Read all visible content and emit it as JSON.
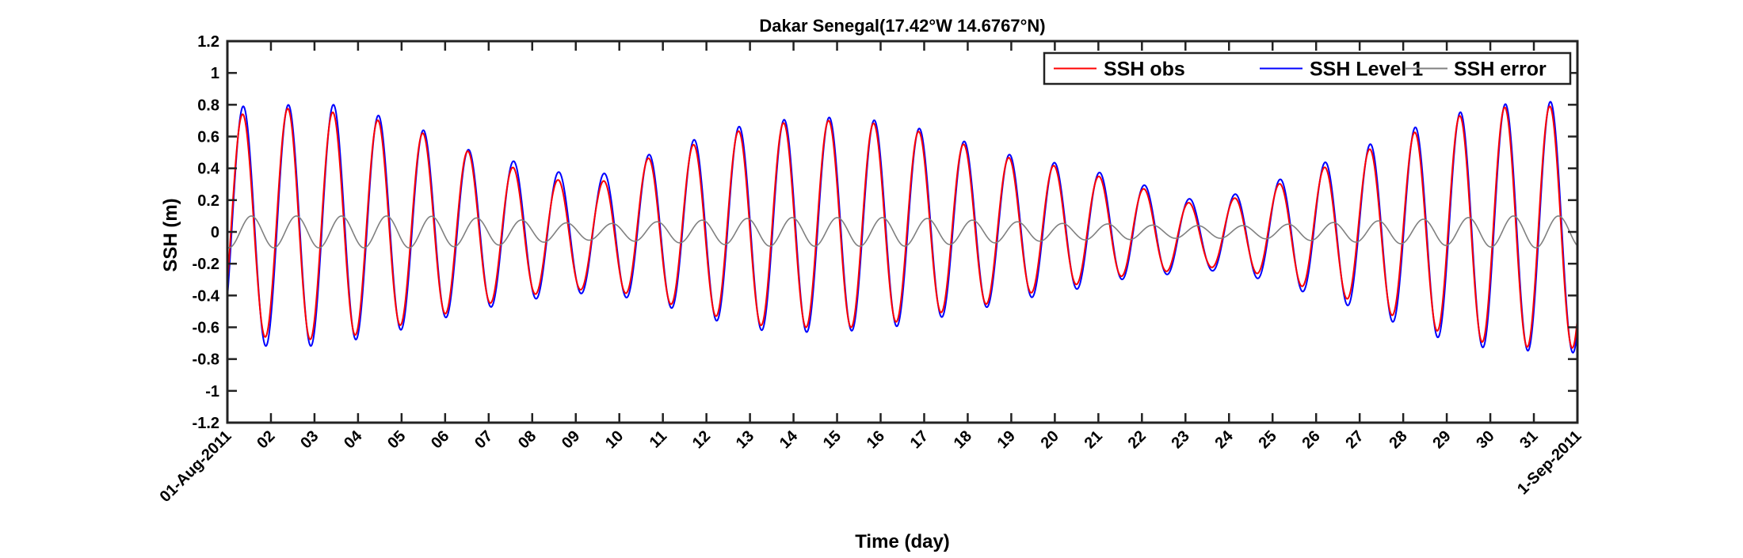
{
  "chart_data": {
    "type": "line",
    "title": "Dakar Senegal(17.42°W 14.6767°N)",
    "xlabel": "Time (day)",
    "ylabel": "SSH (m)",
    "x_range": [
      "2011-08-01",
      "2011-09-01"
    ],
    "ylim": [
      -1.2,
      1.2
    ],
    "y_ticks": [
      -1.2,
      -1,
      -0.8,
      -0.6,
      -0.4,
      -0.2,
      0,
      0.2,
      0.4,
      0.6,
      0.8,
      1,
      1.2
    ],
    "y_tick_labels": [
      "-1.2",
      "-1",
      "-0.8",
      "-0.6",
      "-0.4",
      "-0.2",
      "0",
      "0.2",
      "0.4",
      "0.6",
      "0.8",
      "1",
      "1.2"
    ],
    "x_tick_labels": [
      "01-Aug-2011",
      "02",
      "03",
      "04",
      "05",
      "06",
      "07",
      "08",
      "09",
      "10",
      "11",
      "12",
      "13",
      "14",
      "15",
      "16",
      "17",
      "18",
      "19",
      "20",
      "21",
      "22",
      "23",
      "24",
      "25",
      "26",
      "27",
      "28",
      "29",
      "30",
      "31",
      "1-Sep-2011"
    ],
    "grid": false,
    "legend_position": "top-right",
    "series": [
      {
        "name": "SSH obs",
        "color": "#ff0000",
        "daily_high": [
          0.74,
          0.78,
          0.75,
          0.7,
          0.62,
          0.51,
          0.41,
          0.33,
          0.3,
          0.45,
          0.53,
          0.62,
          0.68,
          0.7,
          0.7,
          0.65,
          0.6,
          0.48,
          0.45,
          0.38,
          0.32,
          0.23,
          0.15,
          0.25,
          0.33,
          0.44,
          0.55,
          0.65,
          0.75,
          0.79,
          0.79
        ],
        "daily_low": [
          -0.65,
          -0.68,
          -0.67,
          -0.62,
          -0.55,
          -0.48,
          -0.42,
          -0.37,
          -0.36,
          -0.4,
          -0.48,
          -0.55,
          -0.6,
          -0.6,
          -0.6,
          -0.56,
          -0.5,
          -0.45,
          -0.38,
          -0.33,
          -0.28,
          -0.25,
          -0.22,
          -0.25,
          -0.33,
          -0.4,
          -0.5,
          -0.6,
          -0.68,
          -0.72,
          -0.73
        ]
      },
      {
        "name": "SSH Level 1",
        "color": "#0000ff",
        "daily_high": [
          0.79,
          0.8,
          0.8,
          0.73,
          0.64,
          0.52,
          0.45,
          0.38,
          0.35,
          0.47,
          0.56,
          0.65,
          0.7,
          0.72,
          0.72,
          0.67,
          0.62,
          0.5,
          0.47,
          0.4,
          0.35,
          0.25,
          0.18,
          0.27,
          0.36,
          0.47,
          0.58,
          0.68,
          0.77,
          0.81,
          0.82
        ],
        "daily_low": [
          -0.71,
          -0.73,
          -0.7,
          -0.65,
          -0.58,
          -0.5,
          -0.45,
          -0.4,
          -0.38,
          -0.43,
          -0.5,
          -0.58,
          -0.63,
          -0.63,
          -0.62,
          -0.59,
          -0.53,
          -0.47,
          -0.41,
          -0.36,
          -0.3,
          -0.27,
          -0.24,
          -0.28,
          -0.36,
          -0.44,
          -0.54,
          -0.64,
          -0.72,
          -0.74,
          -0.76
        ]
      },
      {
        "name": "SSH error",
        "color": "#808080",
        "daily_amplitude": [
          0.1,
          0.1,
          0.1,
          0.1,
          0.1,
          0.09,
          0.08,
          0.06,
          0.05,
          0.06,
          0.07,
          0.08,
          0.09,
          0.09,
          0.09,
          0.09,
          0.08,
          0.07,
          0.06,
          0.05,
          0.05,
          0.04,
          0.04,
          0.04,
          0.05,
          0.06,
          0.07,
          0.08,
          0.09,
          0.1,
          0.1
        ]
      }
    ]
  }
}
